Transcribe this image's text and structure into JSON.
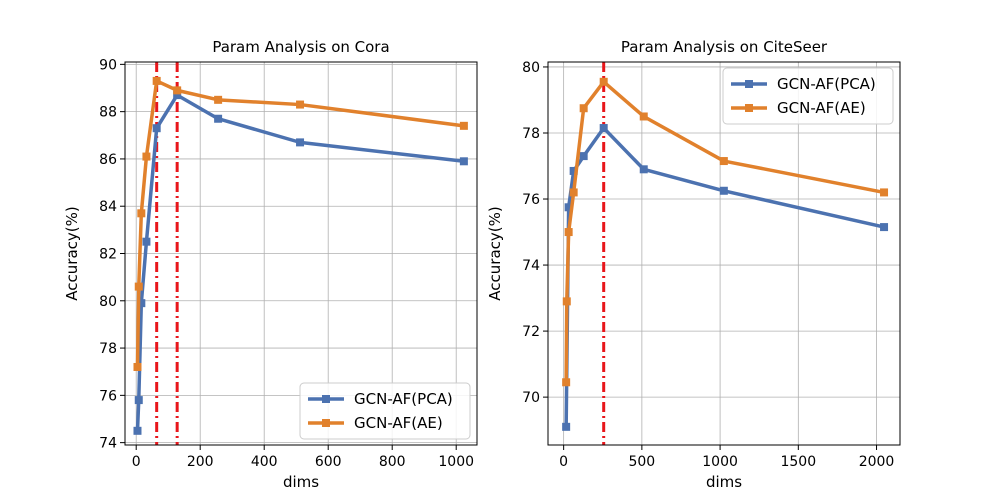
{
  "chart_data": [
    {
      "type": "line",
      "title": "Param Analysis on Cora",
      "xlabel": "dims",
      "ylabel": "Accuracy(%)",
      "xlim": [
        -35,
        1065
      ],
      "ylim": [
        73.9,
        90.1
      ],
      "xticks": [
        0,
        200,
        400,
        600,
        800,
        1000
      ],
      "yticks": [
        74,
        76,
        78,
        80,
        82,
        84,
        86,
        88,
        90
      ],
      "grid": true,
      "legend_position": "lower-right",
      "vlines": [
        64,
        128
      ],
      "vline_color": "#e8161b",
      "series": [
        {
          "name": "GCN-AF(PCA)",
          "color": "#4c72b0",
          "x": [
            4,
            8,
            16,
            32,
            64,
            128,
            256,
            512,
            1024
          ],
          "y": [
            74.5,
            75.8,
            79.9,
            82.5,
            87.3,
            88.7,
            87.7,
            86.7,
            85.9
          ]
        },
        {
          "name": "GCN-AF(AE)",
          "color": "#e1812c",
          "x": [
            4,
            8,
            16,
            32,
            64,
            128,
            256,
            512,
            1024
          ],
          "y": [
            77.2,
            80.6,
            83.7,
            86.1,
            89.3,
            88.9,
            88.5,
            88.3,
            87.4
          ]
        }
      ]
    },
    {
      "type": "line",
      "title": "Param Analysis on CiteSeer",
      "xlabel": "dims",
      "ylabel": "Accuracy(%)",
      "xlim": [
        -100,
        2150
      ],
      "ylim": [
        68.55,
        80.15
      ],
      "xticks": [
        0,
        500,
        1000,
        1500,
        2000
      ],
      "yticks": [
        70,
        72,
        74,
        76,
        78,
        80
      ],
      "grid": true,
      "legend_position": "upper-right",
      "vlines": [
        256
      ],
      "vline_color": "#e8161b",
      "series": [
        {
          "name": "GCN-AF(PCA)",
          "color": "#4c72b0",
          "x": [
            16,
            32,
            64,
            128,
            256,
            512,
            1024,
            2048
          ],
          "y": [
            69.1,
            75.75,
            76.85,
            77.3,
            78.15,
            76.9,
            76.25,
            75.15
          ]
        },
        {
          "name": "GCN-AF(AE)",
          "color": "#e1812c",
          "x": [
            16,
            20,
            32,
            64,
            128,
            256,
            512,
            1024,
            2048
          ],
          "y": [
            70.45,
            72.9,
            75.0,
            76.2,
            78.75,
            79.55,
            78.5,
            77.15,
            76.2
          ]
        }
      ]
    }
  ]
}
